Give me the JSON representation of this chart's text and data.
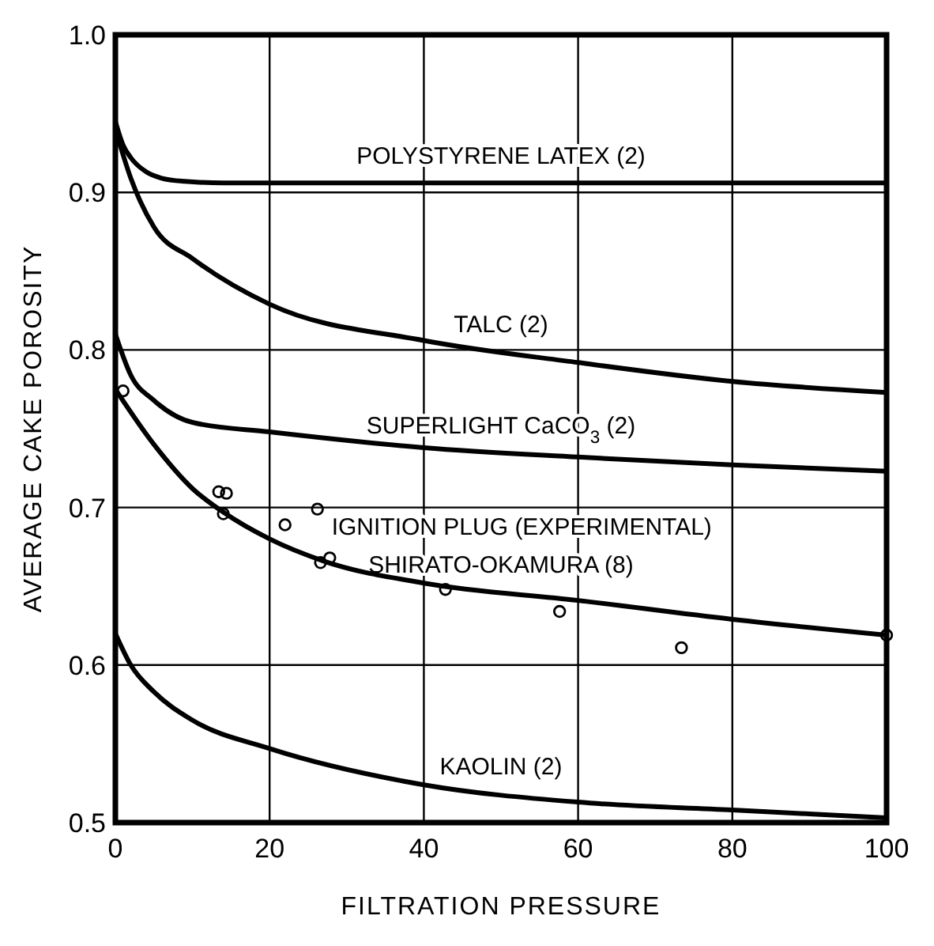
{
  "chart_data": {
    "type": "line",
    "xlabel": "FILTRATION PRESSURE",
    "ylabel": "AVERAGE CAKE POROSITY",
    "xlim": [
      0,
      100
    ],
    "xticks": [
      0,
      20,
      40,
      60,
      80,
      100
    ],
    "ylim": [
      0.5,
      1.0
    ],
    "yticks": [
      {
        "value": 0.5,
        "label": "0.5"
      },
      {
        "value": 0.6,
        "label": "0.6"
      },
      {
        "value": 0.7,
        "label": "0.7"
      },
      {
        "value": 0.8,
        "label": "0.8"
      },
      {
        "value": 0.9,
        "label": "0.9"
      },
      {
        "value": 1.0,
        "label": "1.0"
      }
    ],
    "grid": true,
    "marker": "none",
    "line_style": "solid",
    "series": [
      {
        "name": "POLYSTYRENE LATEX (2)",
        "color": "#000000",
        "x": [
          0,
          1,
          2,
          4,
          6,
          9,
          14,
          100
        ],
        "values": [
          0.945,
          0.93,
          0.922,
          0.913,
          0.909,
          0.907,
          0.906,
          0.906
        ]
      },
      {
        "name": "TALC (2)",
        "color": "#000000",
        "x": [
          0,
          2,
          5,
          10,
          20,
          40,
          60,
          80,
          100
        ],
        "values": [
          0.94,
          0.909,
          0.878,
          0.858,
          0.829,
          0.806,
          0.792,
          0.78,
          0.773
        ]
      },
      {
        "name": "SUPERLIGHT CaCO$_{3}$ (2)",
        "color": "#000000",
        "x": [
          0,
          2,
          5,
          10,
          20,
          40,
          60,
          80,
          100
        ],
        "values": [
          0.81,
          0.784,
          0.768,
          0.754,
          0.748,
          0.738,
          0.732,
          0.727,
          0.723
        ]
      },
      {
        "name": "SHIRATO-OKAMURA (8)",
        "color": "#000000",
        "x": [
          0,
          5,
          10,
          14,
          20,
          27,
          40,
          60,
          80,
          100
        ],
        "values": [
          0.775,
          0.74,
          0.712,
          0.697,
          0.68,
          0.666,
          0.652,
          0.641,
          0.629,
          0.619
        ]
      },
      {
        "name": "KAOLIN (2)",
        "color": "#000000",
        "x": [
          0,
          2,
          5,
          10,
          20,
          40,
          60,
          80,
          100
        ],
        "values": [
          0.62,
          0.6,
          0.583,
          0.565,
          0.547,
          0.524,
          0.513,
          0.508,
          0.503
        ]
      },
      {
        "name": "IGNITION PLUG (EXPERIMENTAL)",
        "type": "scatter",
        "marker": "circle",
        "color": "#000000",
        "x": [
          1,
          13.4,
          14.4,
          14,
          22,
          26.2,
          26.6,
          27.8,
          42.8,
          57.6,
          73.4,
          100
        ],
        "values": [
          0.774,
          0.71,
          0.709,
          0.696,
          0.689,
          0.699,
          0.665,
          0.668,
          0.648,
          0.634,
          0.611,
          0.619
        ]
      }
    ]
  }
}
